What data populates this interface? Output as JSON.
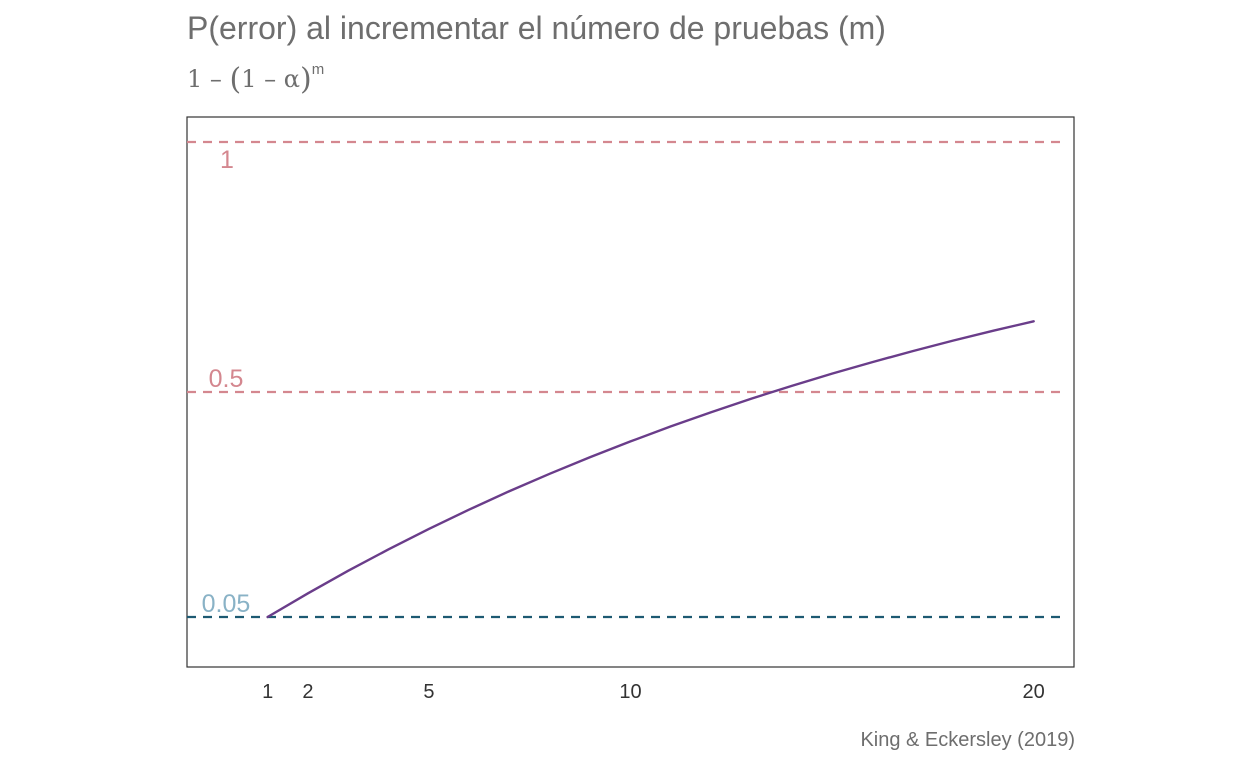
{
  "chart_data": {
    "type": "line",
    "title": "P(error) al incrementar el número de pruebas (m)",
    "subtitle": {
      "lhs": "1 – ",
      "open": "(",
      "inner": "1 – α",
      "close": ")",
      "exponent": "m"
    },
    "caption": "King & Eckersley (2019)",
    "alpha": 0.05,
    "x_ticks": [
      1,
      2,
      5,
      10,
      20
    ],
    "xlim": [
      -1,
      21
    ],
    "ylim": [
      -0.05,
      1.05
    ],
    "series": [
      {
        "color": "#6a3d8a",
        "x": [
          1,
          2,
          3,
          4,
          5,
          6,
          7,
          8,
          9,
          10,
          11,
          12,
          13,
          14,
          15,
          16,
          17,
          18,
          19,
          20
        ],
        "y": [
          0.05,
          0.0975,
          0.1426,
          0.1855,
          0.2262,
          0.2649,
          0.3017,
          0.3366,
          0.3698,
          0.4013,
          0.4312,
          0.4596,
          0.4867,
          0.5123,
          0.5367,
          0.5599,
          0.5819,
          0.6028,
          0.6226,
          0.6415
        ]
      }
    ],
    "reference_lines": [
      {
        "y": 1,
        "label": "1",
        "color": "#d4878f",
        "label_color": "#d4878f"
      },
      {
        "y": 0.5,
        "label": "0.5",
        "color": "#d4878f",
        "label_color": "#d4878f"
      },
      {
        "y": 0.05,
        "label": "0.05",
        "color": "#1d5a72",
        "label_color": "#89b2c6"
      }
    ],
    "grid": false
  }
}
